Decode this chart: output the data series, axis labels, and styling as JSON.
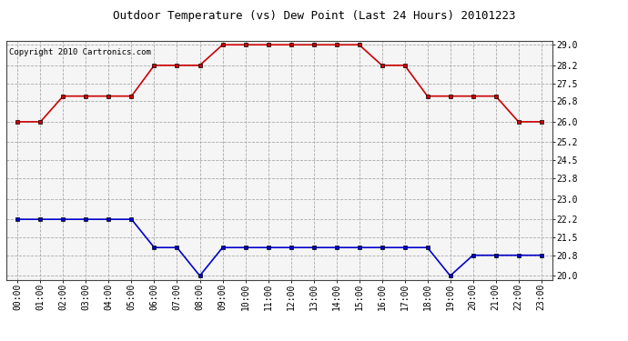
{
  "title": "Outdoor Temperature (vs) Dew Point (Last 24 Hours) 20101223",
  "copyright": "Copyright 2010 Cartronics.com",
  "x_labels": [
    "00:00",
    "01:00",
    "02:00",
    "03:00",
    "04:00",
    "05:00",
    "06:00",
    "07:00",
    "08:00",
    "09:00",
    "10:00",
    "11:00",
    "12:00",
    "13:00",
    "14:00",
    "15:00",
    "16:00",
    "17:00",
    "18:00",
    "19:00",
    "20:00",
    "21:00",
    "22:00",
    "23:00"
  ],
  "temp_values": [
    26.0,
    26.0,
    27.0,
    27.0,
    27.0,
    27.0,
    28.2,
    28.2,
    28.2,
    29.0,
    29.0,
    29.0,
    29.0,
    29.0,
    29.0,
    29.0,
    28.2,
    28.2,
    27.0,
    27.0,
    27.0,
    27.0,
    26.0,
    26.0
  ],
  "dew_values": [
    22.2,
    22.2,
    22.2,
    22.2,
    22.2,
    22.2,
    21.1,
    21.1,
    20.0,
    21.1,
    21.1,
    21.1,
    21.1,
    21.1,
    21.1,
    21.1,
    21.1,
    21.1,
    21.1,
    20.0,
    20.8,
    20.8,
    20.8,
    20.8
  ],
  "temp_color": "#cc0000",
  "dew_color": "#0000cc",
  "bg_color": "#ffffff",
  "plot_bg_color": "#f5f5f5",
  "grid_color": "#aaaaaa",
  "ylim": [
    19.85,
    29.15
  ],
  "yticks": [
    20.0,
    20.8,
    21.5,
    22.2,
    23.0,
    23.8,
    24.5,
    25.2,
    26.0,
    26.8,
    27.5,
    28.2,
    29.0
  ],
  "title_fontsize": 9,
  "copyright_fontsize": 6.5,
  "tick_fontsize": 7,
  "marker": "s",
  "marker_size": 3,
  "line_width": 1.2
}
